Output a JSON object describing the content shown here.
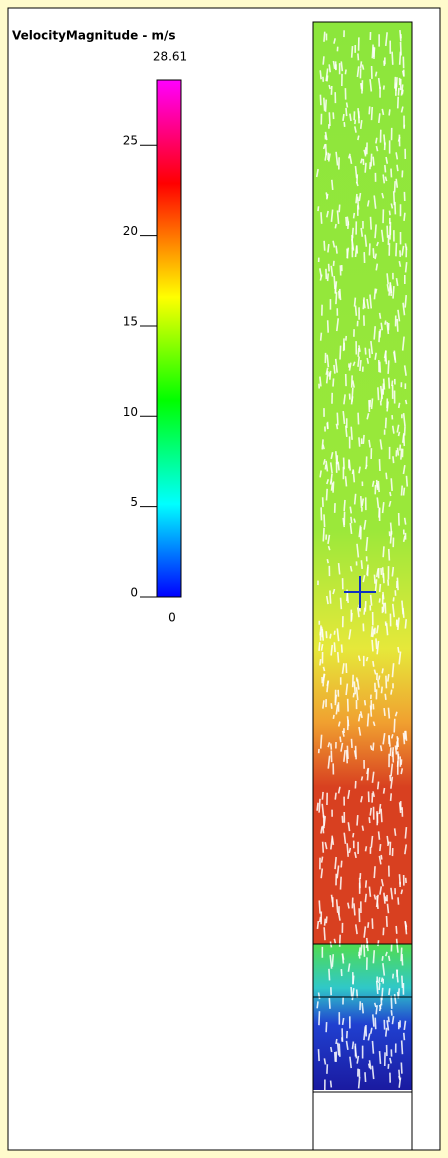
{
  "legend": {
    "title": "VelocityMagnitude - m/s",
    "range": [
      0,
      28.61
    ],
    "ticks": [
      0,
      5,
      10,
      15,
      20,
      25
    ]
  }
}
